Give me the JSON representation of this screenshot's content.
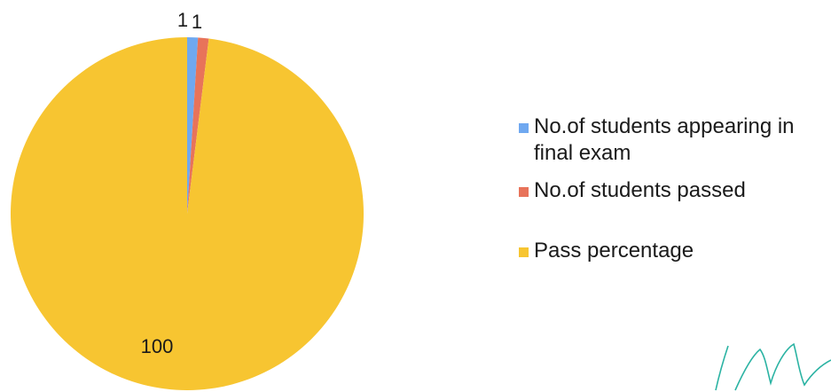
{
  "chart_data": {
    "type": "pie",
    "title": "",
    "slices": [
      {
        "label": "No.of students appearing in final exam",
        "value": 1,
        "display": "1",
        "color": "#6FA8F0"
      },
      {
        "label": "No.of students passed",
        "value": 1,
        "display": "1",
        "color": "#E8735A"
      },
      {
        "label": "Pass percentage",
        "value": 100,
        "display": "100",
        "color": "#F7C531"
      }
    ],
    "legend_position": "right",
    "data_labels": "outside-top for small slices, inside for large slice"
  },
  "legend": {
    "items": [
      {
        "label": "No.of students appearing in final exam",
        "color": "#6FA8F0"
      },
      {
        "label": "No.of students passed",
        "color": "#E8735A"
      },
      {
        "label": "Pass percentage",
        "color": "#F7C531"
      }
    ]
  },
  "signature_color": "#2BB3A3"
}
